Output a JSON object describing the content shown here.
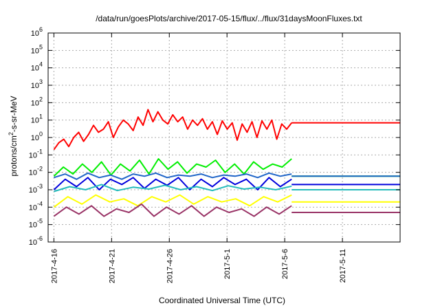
{
  "chart_data": {
    "type": "line",
    "title": "/data/run/goesPlots/archive/2017-05-15/flux/../flux/31daysMoonFluxes.txt",
    "xlabel": "Coordinated Universal Time (UTC)",
    "ylabel_parts": [
      "protons/cm",
      "2",
      "-s-sr-MeV"
    ],
    "x_ticks": [
      "2017-4-16",
      "2017-4-21",
      "2017-4-26",
      "2017-5-1",
      "2017-5-6",
      "2017-5-11"
    ],
    "x_tick_days": [
      0,
      5,
      10,
      15,
      20,
      25
    ],
    "xlim_days": [
      -0.5,
      30.0
    ],
    "y_scale": "log",
    "ylim": [
      1e-06,
      1000000.0
    ],
    "y_tick_exponents": [
      -6,
      -5,
      -4,
      -3,
      -2,
      -1,
      0,
      1,
      2,
      3,
      4,
      5,
      6
    ],
    "y_tick_base": "10",
    "grid": true,
    "data_end_day": 20.6,
    "series": [
      {
        "color": "#ff0000",
        "values": [
          0.2,
          0.5,
          0.8,
          0.3,
          1.0,
          2.0,
          0.6,
          1.5,
          5.0,
          2.0,
          3.0,
          8.0,
          1.0,
          4.0,
          10.0,
          6.0,
          2.5,
          15.0,
          5.0,
          40.0,
          8.0,
          30.0,
          10.0,
          6.0,
          20.0,
          8.0,
          15.0,
          3.0,
          10.0,
          5.0,
          12.0,
          3.0,
          8.0,
          1.5,
          9.0,
          3.0,
          7.0,
          0.7,
          6.0,
          2.0,
          8.0,
          1.0,
          9.0,
          3.0,
          10.0,
          0.8,
          6.0,
          3.0,
          7.0
        ],
        "flat_value": 7.0
      },
      {
        "color": "#00ee00",
        "values": [
          0.006,
          0.02,
          0.008,
          0.03,
          0.01,
          0.04,
          0.007,
          0.03,
          0.012,
          0.05,
          0.008,
          0.06,
          0.015,
          0.04,
          0.009,
          0.03,
          0.02,
          0.05,
          0.01,
          0.03,
          0.008,
          0.04,
          0.015,
          0.03,
          0.02,
          0.06
        ],
        "flat_value": 0.006
      },
      {
        "color": "#1e64c8",
        "values": [
          0.005,
          0.008,
          0.004,
          0.009,
          0.005,
          0.007,
          0.004,
          0.008,
          0.006,
          0.009,
          0.005,
          0.007,
          0.006,
          0.008,
          0.005,
          0.007,
          0.006,
          0.008,
          0.005,
          0.009,
          0.006,
          0.008
        ],
        "flat_value": 0.006
      },
      {
        "color": "#0000dd",
        "values": [
          0.001,
          0.004,
          0.0015,
          0.005,
          0.001,
          0.004,
          0.002,
          0.005,
          0.0012,
          0.004,
          0.0018,
          0.005,
          0.001,
          0.004,
          0.0015,
          0.005,
          0.002,
          0.004,
          0.001,
          0.005,
          0.0015,
          0.004
        ],
        "flat_value": 0.002
      },
      {
        "color": "#22bbbb",
        "values": [
          0.0008,
          0.0015,
          0.001,
          0.002,
          0.0009,
          0.0014,
          0.0011,
          0.0018,
          0.001,
          0.0015,
          0.0009,
          0.0017,
          0.0011,
          0.0014,
          0.001,
          0.0016
        ],
        "flat_value": 0.001
      },
      {
        "color": "#ffff00",
        "values": [
          0.0001,
          0.0004,
          0.00015,
          0.0005,
          0.0002,
          0.0003,
          0.00012,
          0.0004,
          0.0002,
          0.0005,
          0.00015,
          0.0004,
          0.0002,
          0.0003,
          0.00012,
          0.0004,
          0.0002,
          0.0005
        ],
        "flat_value": 0.0002
      },
      {
        "color": "#993366",
        "values": [
          3e-05,
          0.0001,
          4e-05,
          0.00012,
          3e-05,
          8e-05,
          5e-05,
          0.00015,
          3e-05,
          0.0001,
          4e-05,
          0.00012,
          3e-05,
          0.0001,
          5e-05,
          8e-05,
          3e-05,
          0.0001,
          4e-05,
          0.00012
        ],
        "flat_value": 5e-05
      }
    ]
  }
}
